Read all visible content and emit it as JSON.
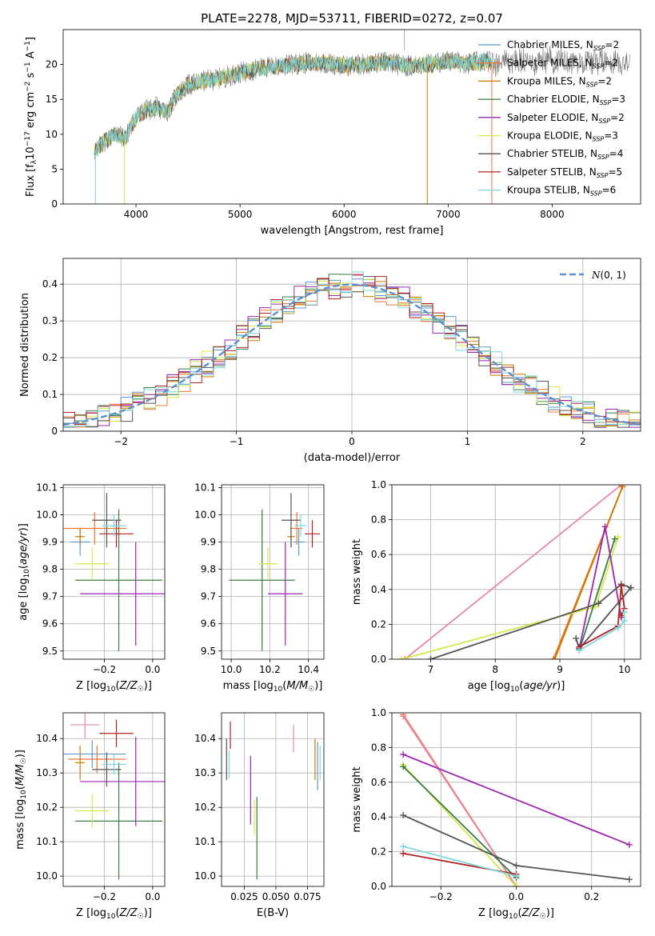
{
  "title": "PLATE=2278, MJD=53711, FIBERID=0272, z=0.07",
  "colors": {
    "Chabrier MILES": "#5b9bd5",
    "Salpeter MILES": "#ee7733",
    "Kroupa MILES": "#cc7a00",
    "Chabrier ELODIE": "#3a7d44",
    "Salpeter ELODIE": "#9b27b0",
    "Kroupa ELODIE": "#d4e84a",
    "Chabrier STELIB": "#555555",
    "Salpeter STELIB": "#b22222",
    "Kroupa STELIB": "#7fd6dc",
    "normal": "#5b8fd6",
    "pink": "#e688b0"
  },
  "chart_data": [
    {
      "type": "line",
      "title": "PLATE=2278, MJD=53711, FIBERID=0272, z=0.07",
      "xlabel": "wavelength [Angstrom, rest frame]",
      "ylabel": "Flux [fλ10⁻¹⁷ erg cm⁻² s⁻¹ A⁻¹]",
      "xlim": [
        3300,
        8850
      ],
      "ylim": [
        0,
        25
      ],
      "xticks": [
        4000,
        5000,
        6000,
        7000,
        8000
      ],
      "yticks": [
        0,
        5,
        10,
        15,
        20
      ],
      "legend_location": "upper-right",
      "legend": [
        "Chabrier MILES, N_SSP=2",
        "Salpeter MILES, N_SSP=2",
        "Kroupa MILES, N_SSP=2",
        "Chabrier ELODIE, N_SSP=3",
        "Salpeter ELODIE, N_SSP=2",
        "Kroupa ELODIE, N_SSP=3",
        "Chabrier STELIB, N_SSP=4",
        "Salpeter STELIB, N_SSP=5",
        "Kroupa STELIB, N_SSP=6"
      ],
      "continuum": {
        "x": [
          3600,
          3700,
          3800,
          3900,
          4000,
          4100,
          4200,
          4300,
          4400,
          4500,
          4600,
          4800,
          5000,
          5200,
          5400,
          5600,
          5800,
          6000,
          6200,
          6400,
          6600,
          6800,
          7000,
          7200,
          7400,
          7600,
          7800,
          8000,
          8200,
          8400,
          8600,
          8800
        ],
        "y": [
          7.5,
          9.0,
          10.0,
          9.5,
          12.5,
          13.5,
          13.8,
          13.2,
          15.8,
          17.0,
          17.5,
          18.0,
          18.8,
          19.5,
          19.8,
          20.2,
          20.3,
          19.8,
          20.0,
          20.3,
          19.8,
          20.0,
          20.5,
          20.2,
          20.5,
          20.5,
          20.3,
          20.8,
          20.5,
          20.6,
          20.5,
          20.2
        ]
      },
      "observed_range": [
        3600,
        8750
      ],
      "model_range": [
        3600,
        7420
      ]
    },
    {
      "type": "histogram",
      "xlabel": "(data-model)/error",
      "ylabel": "Normed distribution",
      "xlim": [
        -2.5,
        2.5
      ],
      "ylim": [
        0,
        0.47
      ],
      "xticks": [
        -2,
        -1,
        0,
        1,
        2
      ],
      "yticks": [
        0.0,
        0.1,
        0.2,
        0.3,
        0.4
      ],
      "bin_width": 0.1,
      "legend": [
        "N(0, 1)"
      ],
      "legend_location": "upper-right"
    },
    {
      "type": "errorbar",
      "xlabel": "Z [log10(Z/Z☉)]",
      "ylabel": "age  [log10(age/yr)]",
      "xlim": [
        -0.37,
        0.05
      ],
      "ylim": [
        9.47,
        10.11
      ],
      "xticks": [
        -0.2,
        0.0
      ],
      "yticks": [
        9.5,
        9.6,
        9.7,
        9.8,
        9.9,
        10.0,
        10.1
      ],
      "points": [
        {
          "model": "Chabrier MILES",
          "x": -0.3,
          "xerr": 0.04,
          "y": 9.9,
          "yerr": 0.05
        },
        {
          "model": "Salpeter MILES",
          "x": -0.24,
          "xerr": 0.13,
          "y": 9.95,
          "yerr": 0.06
        },
        {
          "model": "Kroupa MILES",
          "x": -0.3,
          "xerr": 0.02,
          "y": 9.92,
          "yerr": 0.03
        },
        {
          "model": "Chabrier ELODIE",
          "x": -0.14,
          "xerr": 0.18,
          "y": 9.76,
          "yerr": 0.26
        },
        {
          "model": "Salpeter ELODIE",
          "x": -0.07,
          "xerr": 0.23,
          "y": 9.71,
          "yerr": 0.19
        },
        {
          "model": "Kroupa ELODIE",
          "x": -0.25,
          "xerr": 0.07,
          "y": 9.82,
          "yerr": 0.06
        },
        {
          "model": "Chabrier STELIB",
          "x": -0.19,
          "xerr": 0.06,
          "y": 9.98,
          "yerr": 0.1
        },
        {
          "model": "Salpeter STELIB",
          "x": -0.15,
          "xerr": 0.07,
          "y": 9.93,
          "yerr": 0.05
        },
        {
          "model": "Kroupa STELIB",
          "x": -0.16,
          "xerr": 0.05,
          "y": 9.96,
          "yerr": 0.04
        }
      ]
    },
    {
      "type": "errorbar",
      "xlabel": "mass [log10(M/M☉)]",
      "ylabel": "",
      "xlim": [
        9.95,
        10.48
      ],
      "ylim": [
        9.47,
        10.11
      ],
      "xticks": [
        10.0,
        10.2,
        10.4
      ],
      "yticks": [
        9.5,
        9.6,
        9.7,
        9.8,
        9.9,
        10.0,
        10.1
      ],
      "points": [
        {
          "model": "Chabrier MILES",
          "x": 10.35,
          "xerr": 0.03,
          "y": 9.9,
          "yerr": 0.05
        },
        {
          "model": "Salpeter MILES",
          "x": 10.34,
          "xerr": 0.03,
          "y": 9.95,
          "yerr": 0.06
        },
        {
          "model": "Kroupa MILES",
          "x": 10.31,
          "xerr": 0.02,
          "y": 9.92,
          "yerr": 0.03
        },
        {
          "model": "Chabrier ELODIE",
          "x": 10.16,
          "xerr": 0.17,
          "y": 9.76,
          "yerr": 0.26
        },
        {
          "model": "Salpeter ELODIE",
          "x": 10.28,
          "xerr": 0.09,
          "y": 9.71,
          "yerr": 0.19
        },
        {
          "model": "Kroupa ELODIE",
          "x": 10.19,
          "xerr": 0.05,
          "y": 9.82,
          "yerr": 0.06
        },
        {
          "model": "Chabrier STELIB",
          "x": 10.31,
          "xerr": 0.05,
          "y": 9.98,
          "yerr": 0.1
        },
        {
          "model": "Salpeter STELIB",
          "x": 10.42,
          "xerr": 0.04,
          "y": 9.93,
          "yerr": 0.05
        },
        {
          "model": "Kroupa STELIB",
          "x": 10.36,
          "xerr": 0.03,
          "y": 9.96,
          "yerr": 0.04
        }
      ]
    },
    {
      "type": "line",
      "xlabel": "age  [log10(age/yr)]",
      "ylabel": "mass weight",
      "xlim": [
        6.4,
        10.25
      ],
      "ylim": [
        0,
        1.0
      ],
      "xticks": [
        7,
        8,
        9,
        10
      ],
      "yticks": [
        0.0,
        0.2,
        0.4,
        0.6,
        0.8,
        1.0
      ],
      "series": [
        {
          "model": "pink",
          "x": [
            6.6,
            9.95
          ],
          "y": [
            0.0,
            1.0
          ]
        },
        {
          "model": "Salpeter MILES",
          "x": [
            8.9,
            9.97
          ],
          "y": [
            0.0,
            0.99
          ]
        },
        {
          "model": "Kroupa MILES",
          "x": [
            8.92,
            9.97
          ],
          "y": [
            0.0,
            0.99
          ]
        },
        {
          "model": "Kroupa ELODIE",
          "x": [
            6.55,
            9.55,
            9.9
          ],
          "y": [
            0.0,
            0.3,
            0.7
          ]
        },
        {
          "model": "Chabrier ELODIE",
          "x": [
            9.3,
            9.85
          ],
          "y": [
            0.05,
            0.69
          ]
        },
        {
          "model": "Salpeter ELODIE",
          "x": [
            9.3,
            9.7,
            9.95
          ],
          "y": [
            0.06,
            0.76,
            0.24
          ]
        },
        {
          "model": "Chabrier STELIB",
          "x": [
            7.0,
            9.6,
            9.95,
            10.1,
            9.3,
            9.25
          ],
          "y": [
            0.0,
            0.32,
            0.43,
            0.41,
            0.06,
            0.12
          ]
        },
        {
          "model": "Salpeter STELIB",
          "x": [
            9.3,
            9.9,
            9.95,
            10.0,
            9.95
          ],
          "y": [
            0.07,
            0.19,
            0.42,
            0.29,
            0.25
          ]
        },
        {
          "model": "Kroupa STELIB",
          "x": [
            9.3,
            9.9,
            10.0,
            10.0
          ],
          "y": [
            0.05,
            0.18,
            0.22,
            0.27
          ]
        }
      ]
    },
    {
      "type": "errorbar",
      "xlabel": "Z [log10(Z/Z☉)]",
      "ylabel": "mass [log10(M/M☉)]",
      "xlim": [
        -0.37,
        0.05
      ],
      "ylim": [
        9.97,
        10.475
      ],
      "xticks": [
        -0.2,
        0.0
      ],
      "yticks": [
        10.0,
        10.1,
        10.2,
        10.3,
        10.4
      ],
      "points": [
        {
          "model": "Chabrier MILES",
          "x": -0.25,
          "xerr": 0.14,
          "y": 10.355,
          "yerr": 0.04
        },
        {
          "model": "Salpeter MILES",
          "x": -0.23,
          "xerr": 0.12,
          "y": 10.34,
          "yerr": 0.04
        },
        {
          "model": "Kroupa MILES",
          "x": -0.3,
          "xerr": 0.02,
          "y": 10.33,
          "yerr": 0.05
        },
        {
          "model": "Chabrier ELODIE",
          "x": -0.14,
          "xerr": 0.18,
          "y": 10.16,
          "yerr": 0.17
        },
        {
          "model": "Salpeter ELODIE",
          "x": -0.07,
          "xerr": 0.23,
          "y": 10.275,
          "yerr": 0.13
        },
        {
          "model": "Kroupa ELODIE",
          "x": -0.25,
          "xerr": 0.07,
          "y": 10.19,
          "yerr": 0.05
        },
        {
          "model": "Chabrier STELIB",
          "x": -0.19,
          "xerr": 0.06,
          "y": 10.31,
          "yerr": 0.05
        },
        {
          "model": "Salpeter STELIB",
          "x": -0.15,
          "xerr": 0.07,
          "y": 10.415,
          "yerr": 0.04
        },
        {
          "model": "Kroupa STELIB",
          "x": -0.16,
          "xerr": 0.05,
          "y": 10.325,
          "yerr": 0.03
        },
        {
          "model": "pink",
          "x": -0.28,
          "xerr": 0.06,
          "y": 10.44,
          "yerr": 0.04
        }
      ]
    },
    {
      "type": "errorbar",
      "xlabel": "E(B-V)",
      "ylabel": "",
      "xlim": [
        0.007,
        0.088
      ],
      "ylim": [
        9.97,
        10.475
      ],
      "xticks": [
        0.025,
        0.05,
        0.075
      ],
      "xticklabels": [
        "0.025",
        "0.050",
        "0.075"
      ],
      "yticks": [
        10.0,
        10.1,
        10.2,
        10.3,
        10.4
      ],
      "points": [
        {
          "model": "Chabrier STELIB",
          "x": 0.011,
          "y": 10.34,
          "yerr": 0.06
        },
        {
          "model": "Kroupa STELIB",
          "x": 0.013,
          "y": 10.325,
          "yerr": 0.04
        },
        {
          "model": "Salpeter STELIB",
          "x": 0.014,
          "y": 10.41,
          "yerr": 0.04
        },
        {
          "model": "Salpeter ELODIE",
          "x": 0.03,
          "y": 10.25,
          "yerr": 0.1
        },
        {
          "model": "Kroupa ELODIE",
          "x": 0.033,
          "y": 10.17,
          "yerr": 0.05
        },
        {
          "model": "Chabrier ELODIE",
          "x": 0.035,
          "y": 10.11,
          "yerr": 0.12
        },
        {
          "model": "pink",
          "x": 0.064,
          "y": 10.4,
          "yerr": 0.04
        },
        {
          "model": "Kroupa MILES",
          "x": 0.081,
          "y": 10.34,
          "yerr": 0.06
        },
        {
          "model": "Chabrier MILES",
          "x": 0.083,
          "y": 10.32,
          "yerr": 0.07
        },
        {
          "model": "Kroupa STELIB",
          "x": 0.085,
          "y": 10.33,
          "yerr": 0.05
        }
      ]
    },
    {
      "type": "line",
      "xlabel": "Z [log10(Z/Z☉)]",
      "ylabel": "mass weight",
      "xlim": [
        -0.33,
        0.33
      ],
      "ylim": [
        0,
        1.0
      ],
      "xticks": [
        -0.2,
        0.0,
        0.2
      ],
      "yticks": [
        0.0,
        0.2,
        0.4,
        0.6,
        0.8,
        1.0
      ],
      "series": [
        {
          "model": "Salpeter MILES",
          "x": [
            -0.3,
            0.0
          ],
          "y": [
            0.99,
            0.0
          ]
        },
        {
          "model": "pink",
          "x": [
            -0.3,
            0.0
          ],
          "y": [
            0.98,
            0.0
          ]
        },
        {
          "model": "Kroupa ELODIE",
          "x": [
            -0.3,
            0.0
          ],
          "y": [
            0.7,
            0.0
          ]
        },
        {
          "model": "Chabrier ELODIE",
          "x": [
            -0.3,
            0.0
          ],
          "y": [
            0.69,
            0.05
          ]
        },
        {
          "model": "Salpeter ELODIE",
          "x": [
            -0.3,
            0.3
          ],
          "y": [
            0.76,
            0.24
          ]
        },
        {
          "model": "Chabrier STELIB",
          "x": [
            -0.3,
            0.0,
            0.3
          ],
          "y": [
            0.41,
            0.12,
            0.04
          ]
        },
        {
          "model": "Salpeter STELIB",
          "x": [
            -0.3,
            0.0
          ],
          "y": [
            0.19,
            0.07
          ]
        },
        {
          "model": "Kroupa STELIB",
          "x": [
            -0.3,
            0.0
          ],
          "y": [
            0.23,
            0.06
          ]
        }
      ]
    }
  ]
}
